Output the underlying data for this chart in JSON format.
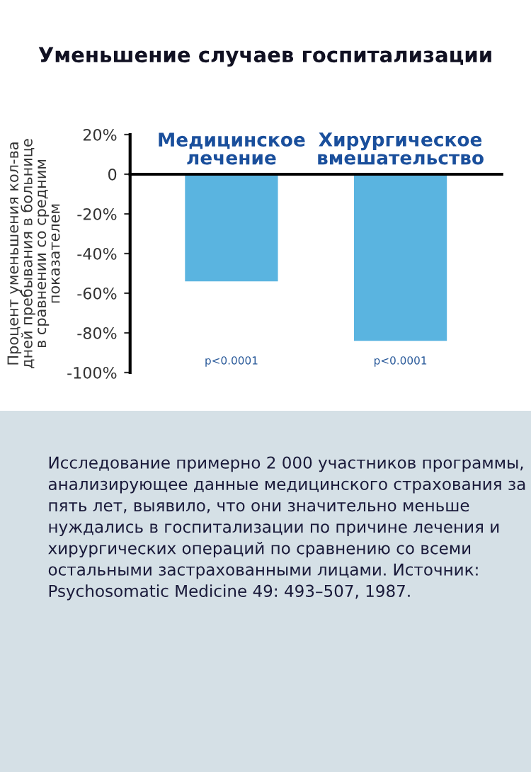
{
  "chart_data": {
    "type": "bar",
    "title": "Уменьшение случаев госпитализации",
    "ylabel": "Процент уменьшения кол-ва\nдней пребывания в больнице\nв сравнении со средним\nпоказателем",
    "categories": [
      "Медицинское\nлечение",
      "Хирургическое\nвмешательство"
    ],
    "values": [
      -54,
      -84
    ],
    "color": "#5ab4e0",
    "ylim": [
      -100,
      20
    ],
    "yticks": [
      {
        "value": 20,
        "label": "20%"
      },
      0,
      {
        "value": -20,
        "label": "-20%"
      },
      {
        "value": -40,
        "label": "-40%"
      },
      {
        "value": -60,
        "label": "-60%"
      },
      {
        "value": -80,
        "label": "-80%"
      },
      {
        "value": -100,
        "label": "-100%"
      }
    ],
    "grid": false,
    "annotations": [
      "p<0.0001",
      "p<0.0001",
      "Исследование примерно 2 000 участников программы, анализирующее данные медицинского страхования за пять лет, выявило, что они значительно меньше нуждались в госпитализации по причине лечения и хирургических операций по сравнению со всеми остальными застрахованными лицами. Источник: Psychosomatic Medicine 49: 493–507, 1987."
    ]
  }
}
